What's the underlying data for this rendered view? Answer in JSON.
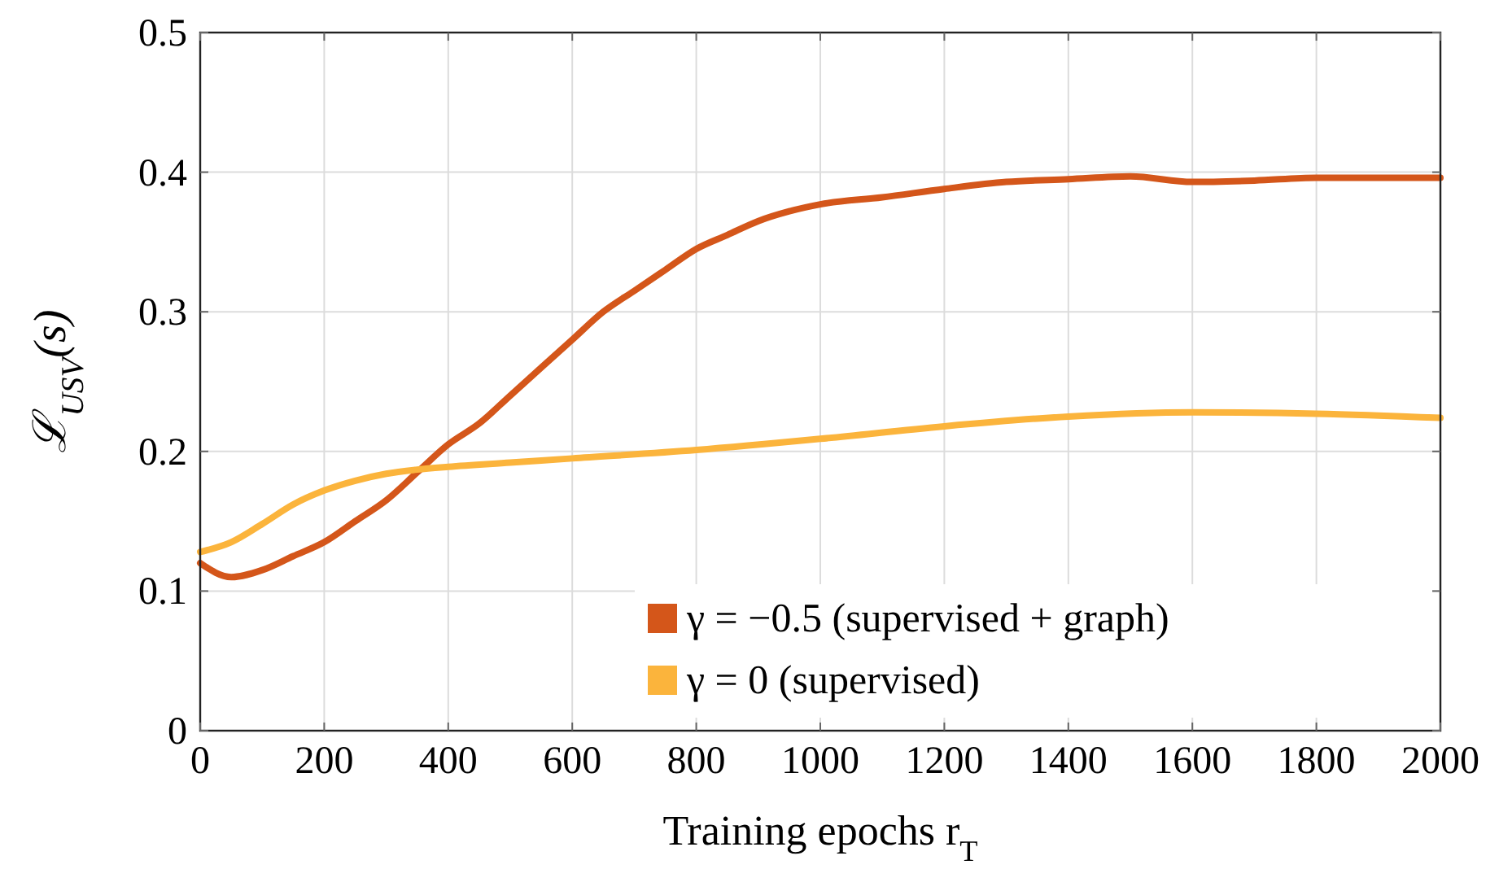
{
  "chart_data": {
    "type": "line",
    "xlabel": "Training epochs r$_{T}$",
    "ylabel": "ℒ$_{USV}$(s)",
    "xlim": [
      0,
      2000
    ],
    "xticks": [
      0,
      200,
      400,
      600,
      800,
      1000,
      1200,
      1400,
      1600,
      1800,
      2000
    ],
    "ylim": [
      0,
      0.5
    ],
    "yticks": [
      0,
      0.1,
      0.2,
      0.3,
      0.4,
      0.5
    ],
    "grid": true,
    "legend": "bottom right",
    "line_style": "solid",
    "series": [
      {
        "name": "γ = −0.5 (supervised + graph)",
        "color": "#d4561a",
        "x": [
          0,
          50,
          100,
          150,
          200,
          250,
          300,
          350,
          400,
          450,
          500,
          550,
          600,
          650,
          700,
          750,
          800,
          850,
          900,
          950,
          1000,
          1100,
          1200,
          1300,
          1400,
          1500,
          1600,
          1700,
          1800,
          1900,
          2000
        ],
        "values": [
          0.12,
          0.11,
          0.115,
          0.125,
          0.135,
          0.15,
          0.165,
          0.185,
          0.205,
          0.22,
          0.24,
          0.26,
          0.28,
          0.3,
          0.315,
          0.33,
          0.345,
          0.355,
          0.365,
          0.372,
          0.377,
          0.382,
          0.388,
          0.393,
          0.395,
          0.397,
          0.393,
          0.394,
          0.396,
          0.396,
          0.396
        ]
      },
      {
        "name": "γ = 0 (supervised)",
        "color": "#fbb43c",
        "x": [
          0,
          50,
          100,
          150,
          200,
          250,
          300,
          350,
          400,
          500,
          600,
          800,
          1000,
          1200,
          1400,
          1600,
          1800,
          2000
        ],
        "values": [
          0.128,
          0.135,
          0.148,
          0.162,
          0.172,
          0.179,
          0.184,
          0.187,
          0.189,
          0.192,
          0.195,
          0.201,
          0.209,
          0.218,
          0.225,
          0.228,
          0.227,
          0.224
        ]
      }
    ]
  }
}
